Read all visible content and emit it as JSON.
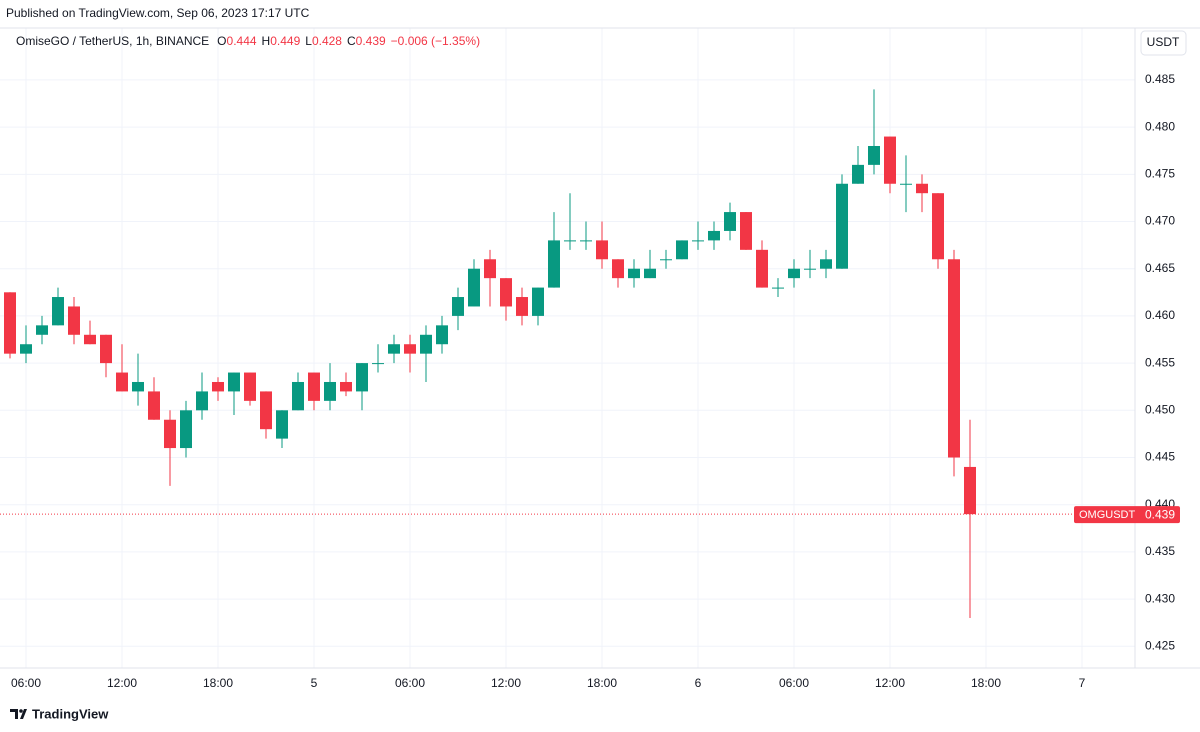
{
  "header": {
    "published": "Published on TradingView.com, Sep 06, 2023 17:17 UTC",
    "currency": "USDT"
  },
  "footer": {
    "brand": "TradingView"
  },
  "chart_data": {
    "type": "candlestick",
    "title": "OmiseGO / TetherUS, 1h, BINANCE",
    "ohlc_legend": [
      {
        "label": "O",
        "value": 0.444
      },
      {
        "label": "H",
        "value": 0.449
      },
      {
        "label": "L",
        "value": 0.428
      },
      {
        "label": "C",
        "value": 0.439
      }
    ],
    "change": "−0.006 (−1.35%)",
    "categories": [
      null,
      "06:00",
      null,
      null,
      null,
      null,
      null,
      "12:00",
      null,
      null,
      null,
      null,
      null,
      "18:00",
      null,
      null,
      null,
      null,
      null,
      "5",
      null,
      null,
      null,
      null,
      null,
      "06:00",
      null,
      null,
      null,
      null,
      null,
      "12:00",
      null,
      null,
      null,
      null,
      null,
      "18:00",
      null,
      null,
      null,
      null,
      null,
      "6",
      null,
      null,
      null,
      null,
      null,
      "06:00",
      null,
      null,
      null,
      null,
      null,
      "12:00",
      null,
      null,
      null,
      null,
      null,
      "18:00",
      null,
      null,
      null,
      null,
      null,
      "7"
    ],
    "open": [
      0.4625,
      0.456,
      0.458,
      0.459,
      0.461,
      0.458,
      0.458,
      0.454,
      0.452,
      0.452,
      0.449,
      0.446,
      0.45,
      0.453,
      0.452,
      0.454,
      0.452,
      0.447,
      0.45,
      0.454,
      0.451,
      0.453,
      0.452,
      0.455,
      0.456,
      0.457,
      0.456,
      0.457,
      0.46,
      0.461,
      0.466,
      0.464,
      0.462,
      0.46,
      0.463,
      0.468,
      0.468,
      0.468,
      0.466,
      0.464,
      0.464,
      0.466,
      0.466,
      0.468,
      0.468,
      0.469,
      0.471,
      0.467,
      0.463,
      0.464,
      0.465,
      0.465,
      0.465,
      0.474,
      0.476,
      0.479,
      0.474,
      0.474,
      0.473,
      0.466,
      0.444,
      null,
      null,
      null,
      null,
      null,
      null,
      null
    ],
    "high": [
      0.4625,
      0.459,
      0.46,
      0.463,
      0.462,
      0.4595,
      0.458,
      0.457,
      0.456,
      0.4535,
      0.45,
      0.451,
      0.454,
      0.4535,
      0.454,
      0.454,
      0.452,
      0.45,
      0.454,
      0.454,
      0.455,
      0.454,
      0.455,
      0.457,
      0.458,
      0.458,
      0.459,
      0.46,
      0.463,
      0.466,
      0.467,
      0.464,
      0.463,
      0.463,
      0.471,
      0.473,
      0.47,
      0.47,
      0.466,
      0.466,
      0.467,
      0.467,
      0.468,
      0.47,
      0.47,
      0.472,
      0.471,
      0.468,
      0.464,
      0.466,
      0.467,
      0.467,
      0.475,
      0.478,
      0.484,
      0.479,
      0.477,
      0.475,
      0.473,
      0.467,
      0.449,
      null,
      null,
      null,
      null,
      null,
      null,
      null
    ],
    "low": [
      0.4555,
      0.455,
      0.457,
      0.459,
      0.457,
      0.457,
      0.4535,
      0.452,
      0.4505,
      0.449,
      0.442,
      0.445,
      0.449,
      0.451,
      0.4495,
      0.4505,
      0.447,
      0.446,
      0.45,
      0.45,
      0.45,
      0.4515,
      0.45,
      0.454,
      0.455,
      0.454,
      0.453,
      0.456,
      0.4585,
      0.461,
      0.461,
      0.4595,
      0.459,
      0.459,
      0.463,
      0.467,
      0.467,
      0.465,
      0.463,
      0.463,
      0.464,
      0.465,
      0.466,
      0.467,
      0.467,
      0.468,
      0.467,
      0.463,
      0.462,
      0.463,
      0.464,
      0.464,
      0.465,
      0.474,
      0.475,
      0.473,
      0.471,
      0.471,
      0.465,
      0.443,
      0.428,
      null,
      null,
      null,
      null,
      null,
      null,
      null
    ],
    "close": [
      0.456,
      0.457,
      0.459,
      0.462,
      0.458,
      0.457,
      0.455,
      0.452,
      0.453,
      0.449,
      0.446,
      0.45,
      0.452,
      0.452,
      0.454,
      0.451,
      0.448,
      0.45,
      0.453,
      0.451,
      0.453,
      0.452,
      0.455,
      0.455,
      0.457,
      0.456,
      0.458,
      0.459,
      0.462,
      0.465,
      0.464,
      0.461,
      0.46,
      0.463,
      0.468,
      0.468,
      0.468,
      0.466,
      0.464,
      0.465,
      0.465,
      0.466,
      0.468,
      0.468,
      0.469,
      0.471,
      0.467,
      0.463,
      0.463,
      0.465,
      0.465,
      0.466,
      0.474,
      0.476,
      0.478,
      0.474,
      0.474,
      0.473,
      0.466,
      0.445,
      0.439,
      null,
      null,
      null,
      null,
      null,
      null,
      null
    ],
    "up_color": "#089981",
    "down_color": "#f23645",
    "ylim": [
      0.4227,
      0.4905
    ],
    "yticks": [
      0.425,
      {
        "value": 0.43,
        "label": "0.430"
      },
      0.435,
      {
        "value": 0.44,
        "label": "0.440"
      },
      0.445,
      {
        "value": 0.45,
        "label": "0.450"
      },
      0.455,
      {
        "value": 0.46,
        "label": "0.460"
      },
      0.465,
      {
        "value": 0.47,
        "label": "0.470"
      },
      0.475,
      {
        "value": 0.48,
        "label": "0.480"
      },
      0.485
    ],
    "grid": true,
    "last_price": {
      "symbol": "OMGUSDT",
      "value": 0.439
    }
  }
}
